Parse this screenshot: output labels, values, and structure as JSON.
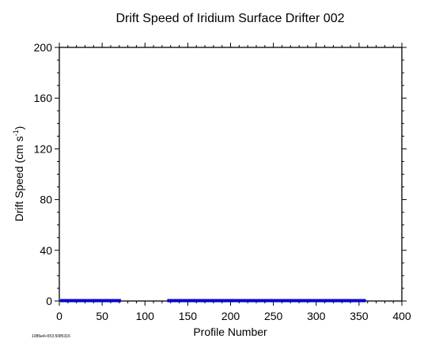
{
  "chart_data": {
    "type": "scatter",
    "title": "Drift Speed of Iridium Surface Drifter 002",
    "xlabel": "Profile Number",
    "ylabel_main": "Drift Speed (cm s",
    "ylabel_sup": "-1",
    "ylabel_close": ")",
    "xlim": [
      0,
      400
    ],
    "ylim": [
      0,
      200
    ],
    "xticks": [
      0,
      50,
      100,
      150,
      200,
      250,
      300,
      350,
      400
    ],
    "yticks": [
      0,
      40,
      80,
      120,
      160,
      200
    ],
    "grid": false,
    "series": [
      {
        "color": "#0000cc",
        "segments": [
          {
            "x_start": 1,
            "x_end": 72,
            "y": 0
          },
          {
            "x_start": 126,
            "x_end": 358,
            "y": 0
          }
        ]
      }
    ]
  },
  "footnote": "1086e4+553.5085316"
}
